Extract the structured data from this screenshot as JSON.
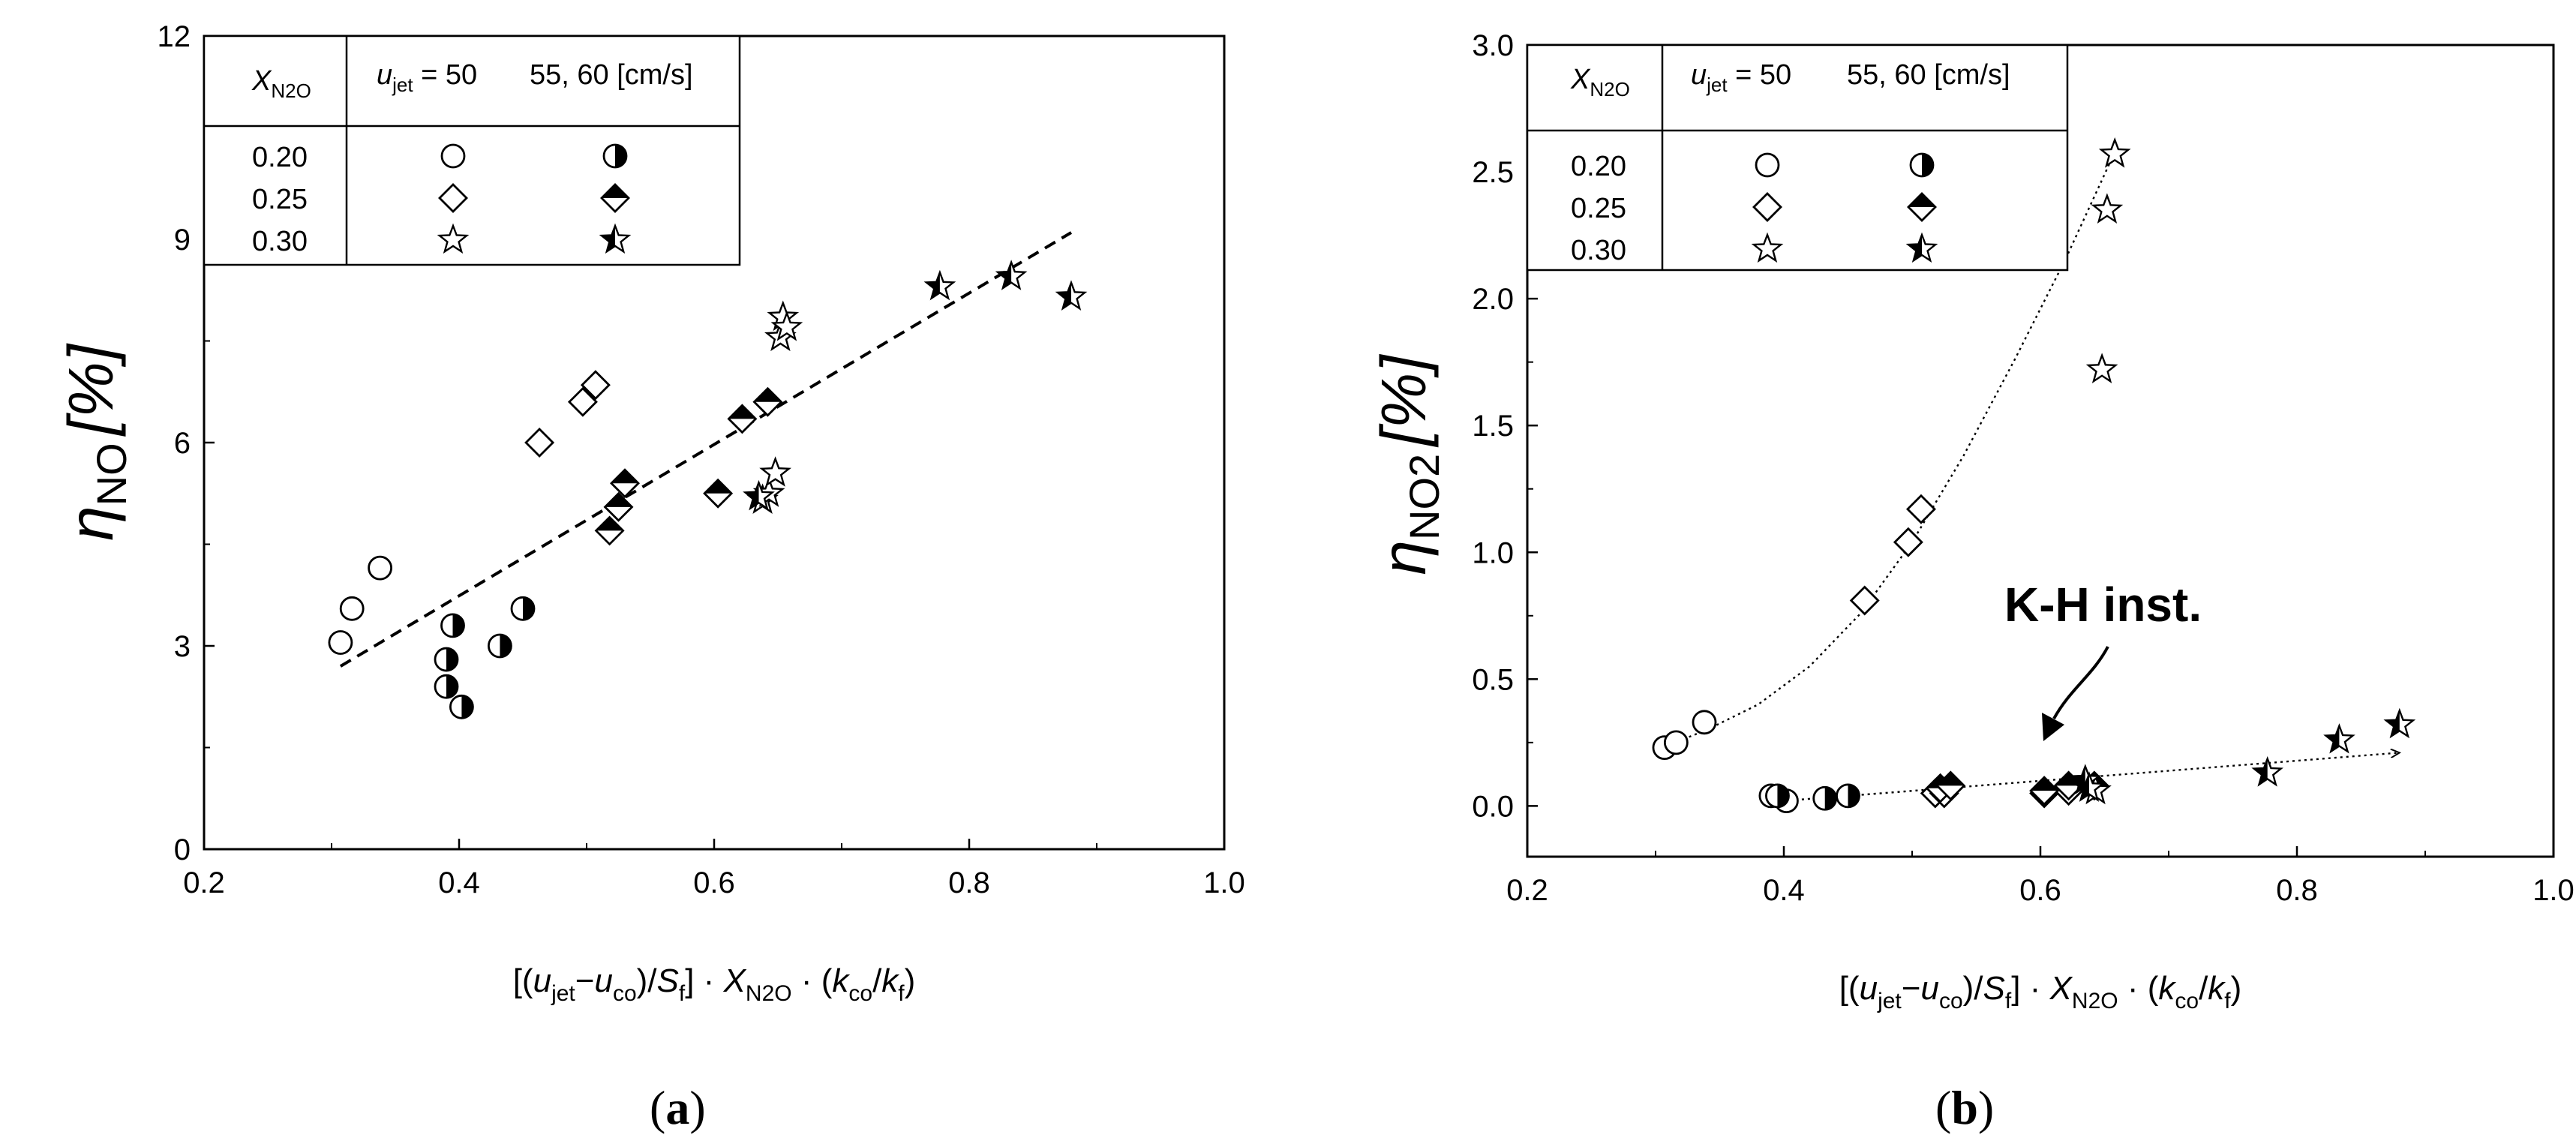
{
  "chart_data": [
    {
      "type": "scatter",
      "panel_label": "(a)",
      "panel_letter": "a",
      "ylabel": "ηNO [%]",
      "ylabel_symbol": "η",
      "ylabel_sub": "NO",
      "ylabel_unit": "[%]",
      "xlabel": "[(ujet−uco)/Sf] · XN2O · (kco/kf)",
      "xlim": [
        0.2,
        1.0
      ],
      "ylim": [
        0,
        12
      ],
      "xticks": [
        "0.2",
        "0.4",
        "0.6",
        "0.8",
        "1.0"
      ],
      "yticks": [
        "0",
        "3",
        "6",
        "9",
        "12"
      ],
      "legend": {
        "header_x": "X",
        "header_x_sub": "N2O",
        "header_u": "u",
        "header_u_sub": "jet",
        "header_u_rest": " = 50",
        "header_right": "55, 60  [cm/s]",
        "rows": [
          "0.20",
          "0.25",
          "0.30"
        ]
      },
      "series": [
        {
          "name": "0.20 / 50",
          "marker": "circle-open",
          "points": [
            [
              0.307,
              3.05
            ],
            [
              0.316,
              3.55
            ],
            [
              0.338,
              4.15
            ]
          ]
        },
        {
          "name": "0.20 / 55, 60",
          "marker": "circle-half",
          "points": [
            [
              0.39,
              2.8
            ],
            [
              0.39,
              2.4
            ],
            [
              0.395,
              3.3
            ],
            [
              0.402,
              2.1
            ],
            [
              0.432,
              3.0
            ],
            [
              0.45,
              3.55
            ]
          ]
        },
        {
          "name": "0.25 / 50",
          "marker": "diamond-open",
          "points": [
            [
              0.463,
              6.0
            ],
            [
              0.497,
              6.6
            ],
            [
              0.507,
              6.85
            ]
          ]
        },
        {
          "name": "0.25 / 55, 60",
          "marker": "diamond-half",
          "points": [
            [
              0.518,
              4.7
            ],
            [
              0.525,
              5.05
            ],
            [
              0.53,
              5.4
            ],
            [
              0.603,
              5.25
            ],
            [
              0.622,
              6.35
            ],
            [
              0.642,
              6.6
            ]
          ]
        },
        {
          "name": "0.30 / 50",
          "marker": "star-open",
          "points": [
            [
              0.638,
              5.15
            ],
            [
              0.643,
              5.25
            ],
            [
              0.648,
              5.55
            ],
            [
              0.652,
              7.55
            ],
            [
              0.654,
              7.85
            ],
            [
              0.657,
              7.7
            ]
          ]
        },
        {
          "name": "0.30 / 55, 60",
          "marker": "star-half",
          "points": [
            [
              0.635,
              5.2
            ],
            [
              0.777,
              8.3
            ],
            [
              0.833,
              8.45
            ],
            [
              0.88,
              8.15
            ]
          ]
        }
      ],
      "fit_lines": [
        {
          "style": "dashed",
          "points": [
            [
              0.307,
              2.7
            ],
            [
              0.88,
              9.1
            ]
          ]
        }
      ]
    },
    {
      "type": "scatter",
      "panel_label": "(b)",
      "panel_letter": "b",
      "ylabel": "ηNO2 [%]",
      "ylabel_symbol": "η",
      "ylabel_sub": "NO2",
      "ylabel_unit": "[%]",
      "xlabel": "[(ujet−uco)/Sf] · XN2O · (kco/kf)",
      "xlim": [
        0.2,
        1.0
      ],
      "ylim": [
        -0.2,
        3.0
      ],
      "xticks": [
        "0.2",
        "0.4",
        "0.6",
        "0.8",
        "1.0"
      ],
      "yticks": [
        "0.0",
        "0.5",
        "1.0",
        "1.5",
        "2.0",
        "2.5",
        "3.0"
      ],
      "annotation": "K-H inst.",
      "legend": {
        "header_x": "X",
        "header_x_sub": "N2O",
        "header_u": "u",
        "header_u_sub": "jet",
        "header_u_rest": " = 50",
        "header_right": "55, 60  [cm/s]",
        "rows": [
          "0.20",
          "0.25",
          "0.30"
        ]
      },
      "series": [
        {
          "name": "0.20 / 50",
          "marker": "circle-open",
          "points": [
            [
              0.307,
              0.23
            ],
            [
              0.316,
              0.25
            ],
            [
              0.338,
              0.33
            ],
            [
              0.402,
              0.02
            ]
          ]
        },
        {
          "name": "0.20 / 55, 60",
          "marker": "circle-half",
          "points": [
            [
              0.39,
              0.04
            ],
            [
              0.395,
              0.04
            ],
            [
              0.432,
              0.03
            ],
            [
              0.45,
              0.04
            ]
          ]
        },
        {
          "name": "0.25 / 50",
          "marker": "diamond-open",
          "points": [
            [
              0.463,
              0.81
            ],
            [
              0.497,
              1.04
            ],
            [
              0.507,
              1.17
            ],
            [
              0.518,
              0.05
            ],
            [
              0.525,
              0.05
            ],
            [
              0.603,
              0.05
            ],
            [
              0.622,
              0.06
            ]
          ]
        },
        {
          "name": "0.25 / 55, 60",
          "marker": "diamond-half",
          "points": [
            [
              0.522,
              0.07
            ],
            [
              0.53,
              0.08
            ],
            [
              0.603,
              0.06
            ],
            [
              0.622,
              0.08
            ],
            [
              0.642,
              0.08
            ]
          ]
        },
        {
          "name": "0.30 / 50",
          "marker": "star-open",
          "points": [
            [
              0.648,
              1.72
            ],
            [
              0.652,
              2.35
            ],
            [
              0.658,
              2.57
            ],
            [
              0.643,
              0.06
            ]
          ]
        },
        {
          "name": "0.30 / 55, 60",
          "marker": "star-half",
          "points": [
            [
              0.635,
              0.1
            ],
            [
              0.638,
              0.07
            ],
            [
              0.777,
              0.13
            ],
            [
              0.833,
              0.26
            ],
            [
              0.88,
              0.32
            ]
          ]
        }
      ],
      "fit_lines": [
        {
          "style": "dotted",
          "points": [
            [
              0.3,
              0.22
            ],
            [
              0.34,
              0.3
            ],
            [
              0.38,
              0.4
            ],
            [
              0.42,
              0.55
            ],
            [
              0.46,
              0.76
            ],
            [
              0.5,
              1.04
            ],
            [
              0.54,
              1.38
            ],
            [
              0.58,
              1.76
            ],
            [
              0.62,
              2.16
            ],
            [
              0.66,
              2.6
            ]
          ]
        },
        {
          "style": "dotted-arrow",
          "points": [
            [
              0.4,
              0.02
            ],
            [
              0.88,
              0.21
            ]
          ]
        }
      ]
    }
  ]
}
